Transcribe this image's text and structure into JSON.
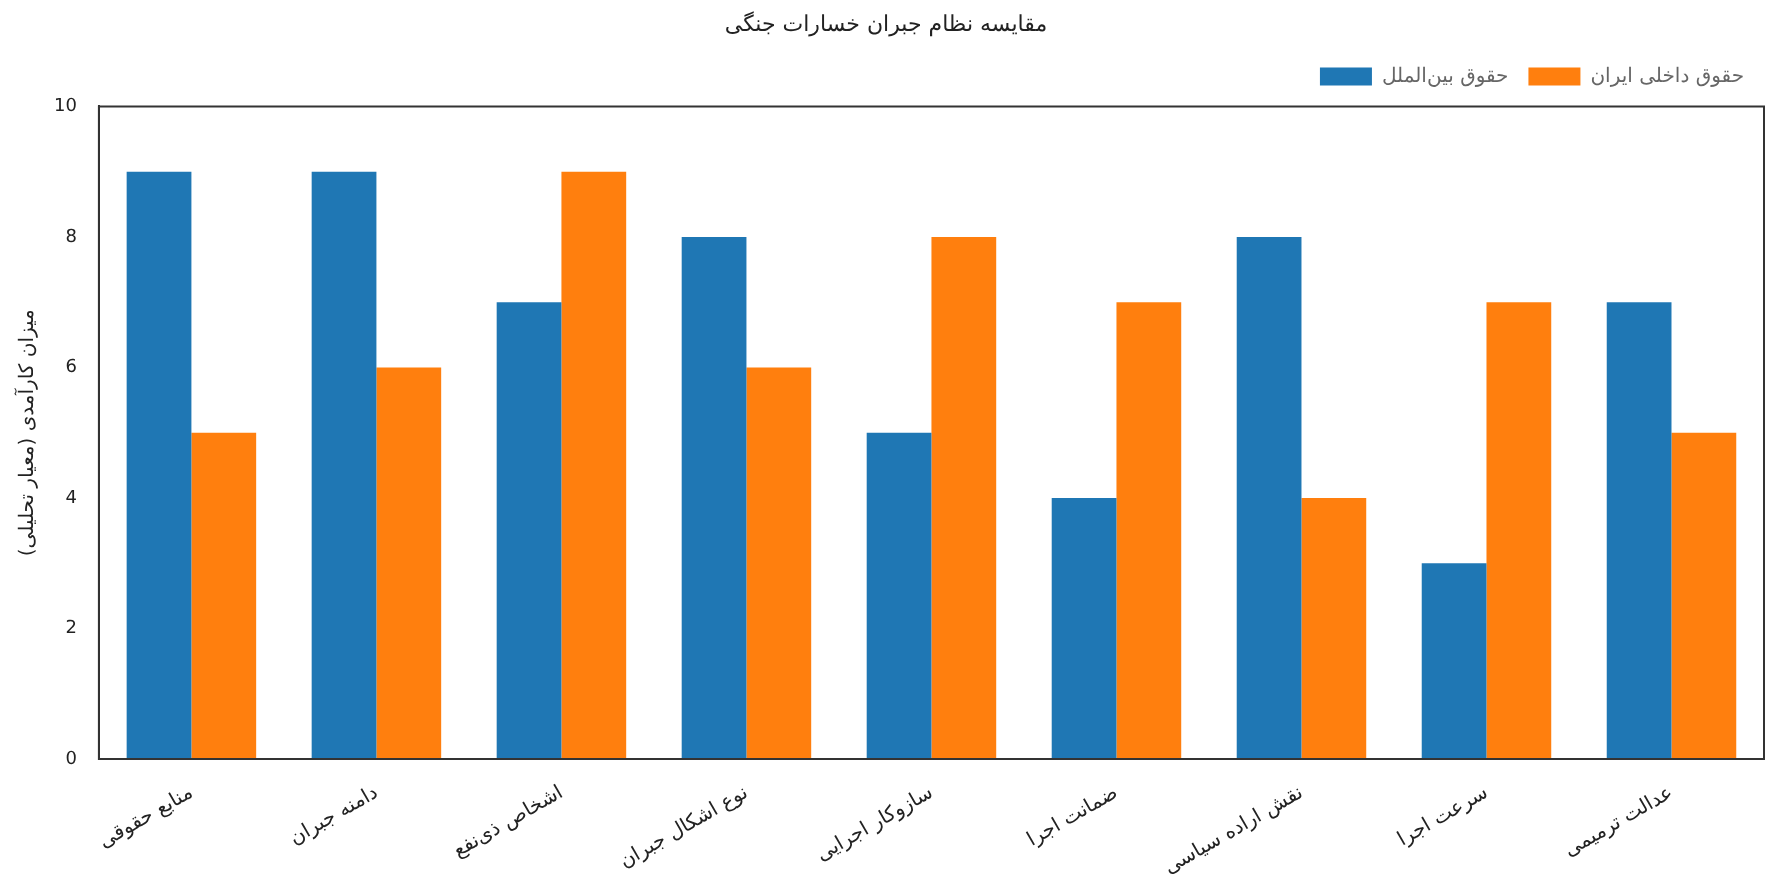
{
  "chart_data": {
    "type": "bar",
    "title": "مقایسه نظام جبران خسارات جنگی",
    "ylabel": "میزان کارآمدی (معیار تحلیلی)",
    "categories": [
      "منابع حقوقی",
      "دامنه جبران",
      "اشخاص ذی‌نفع",
      "نوع اشکال جبران",
      "سازوکار اجرایی",
      "ضمانت اجرا",
      "نقش اراده سیاسی",
      "سرعت اجرا",
      "عدالت ترمیمی"
    ],
    "series": [
      {
        "name": "حقوق بین‌الملل",
        "color": "#1f77b4",
        "values": [
          9,
          9,
          7,
          8,
          5,
          4,
          8,
          3,
          7
        ]
      },
      {
        "name": "حقوق داخلی ایران",
        "color": "#ff7f0e",
        "values": [
          5,
          6,
          9,
          6,
          8,
          7,
          4,
          7,
          5
        ]
      }
    ],
    "ylim": [
      0,
      10
    ],
    "yticks": [
      0,
      2,
      4,
      6,
      8,
      10
    ],
    "grid": false,
    "legend": "top right"
  }
}
